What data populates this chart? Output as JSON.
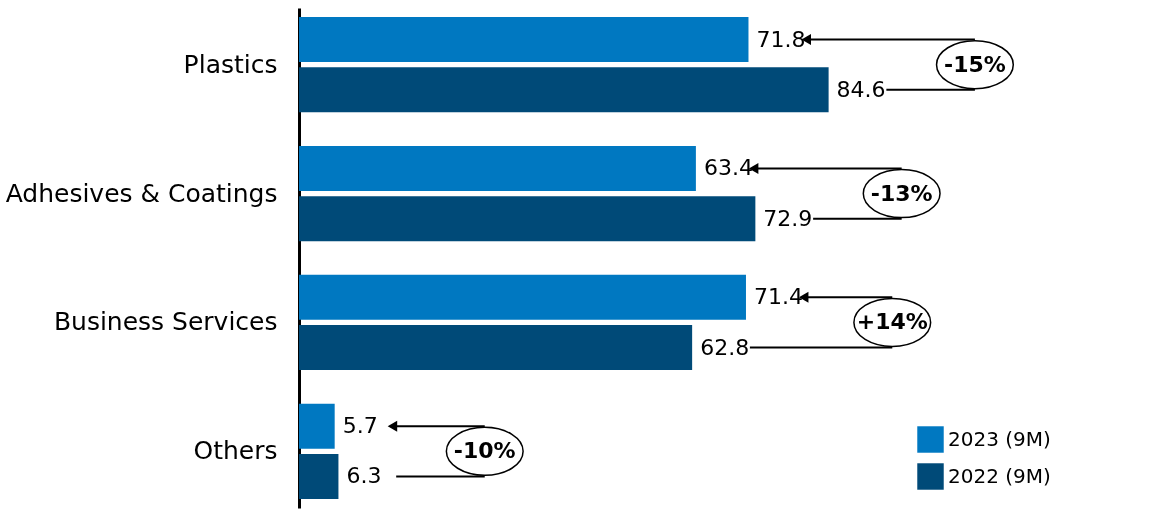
{
  "chart_data": {
    "type": "bar",
    "orientation": "horizontal",
    "categories": [
      "Plastics",
      "Adhesives & Coatings",
      "Business Services",
      "Others"
    ],
    "series": [
      {
        "name": "2023 (9M)",
        "color": "#0078c1",
        "values": [
          71.8,
          63.4,
          71.4,
          5.7
        ]
      },
      {
        "name": "2022 (9M)",
        "color": "#004a78",
        "values": [
          84.6,
          72.9,
          62.8,
          6.3
        ]
      }
    ],
    "xlim": [
      0,
      123
    ],
    "data_labels": true,
    "legend": "bottom right",
    "grid": false,
    "annotations": [
      "-15%",
      "-13%",
      "+14%",
      "-10%"
    ]
  }
}
